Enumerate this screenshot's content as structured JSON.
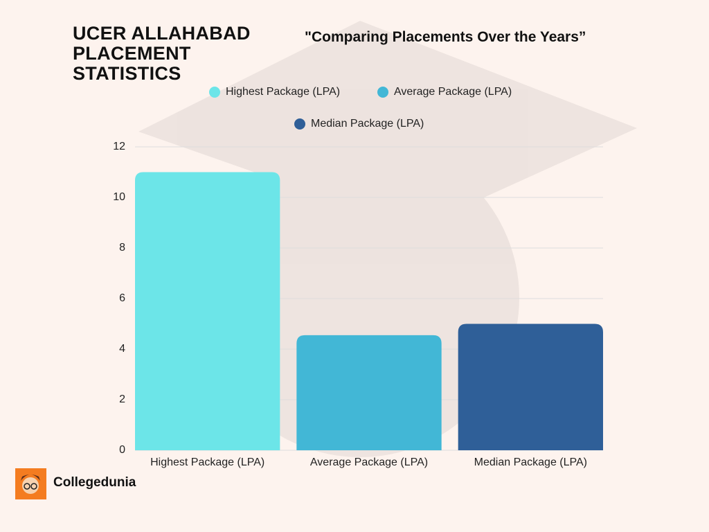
{
  "chart_data": {
    "type": "bar",
    "title": "UCER ALLAHABAD PLACEMENT STATISTICS",
    "subtitle": "\"Comparing Placements Over the Years”",
    "categories": [
      "Highest Package (LPA)",
      "Average Package (LPA)",
      "Median Package (LPA)"
    ],
    "values": [
      11,
      4.55,
      5
    ],
    "colors": [
      "#6ce5e8",
      "#42b7d6",
      "#2f5f98"
    ],
    "ylim": [
      0,
      12
    ],
    "yticks": [
      0,
      2,
      4,
      6,
      8,
      10,
      12
    ],
    "grid": true,
    "legend": "top"
  },
  "brand": "Collegedunia"
}
